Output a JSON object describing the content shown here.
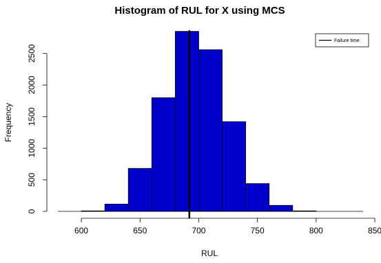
{
  "chart_data": {
    "type": "bar",
    "title": "Histogram of RUL for X using MCS",
    "xlabel": "RUL",
    "ylabel": "Frequency",
    "bin_edges": [
      600,
      620,
      640,
      660,
      680,
      700,
      720,
      740,
      760,
      780,
      800
    ],
    "values": [
      8,
      115,
      680,
      1800,
      2850,
      2560,
      1420,
      440,
      95,
      8
    ],
    "xlim": [
      580,
      840
    ],
    "ylim": [
      0,
      2900
    ],
    "x_ticks": [
      600,
      650,
      700,
      750,
      800,
      850
    ],
    "y_ticks": [
      0,
      500,
      1000,
      1500,
      2000,
      2500
    ],
    "x_tick_labels": [
      "600",
      "650",
      "700",
      "750",
      "800",
      "850"
    ],
    "y_tick_labels": [
      "0",
      "500",
      "1000",
      "1500",
      "2000",
      "2500"
    ],
    "bar_color": "#0000cd",
    "failure_time": 692,
    "grid": false,
    "legend": {
      "position": "top-right",
      "entries": [
        {
          "label": "Failure time",
          "color": "#000000"
        }
      ]
    }
  }
}
